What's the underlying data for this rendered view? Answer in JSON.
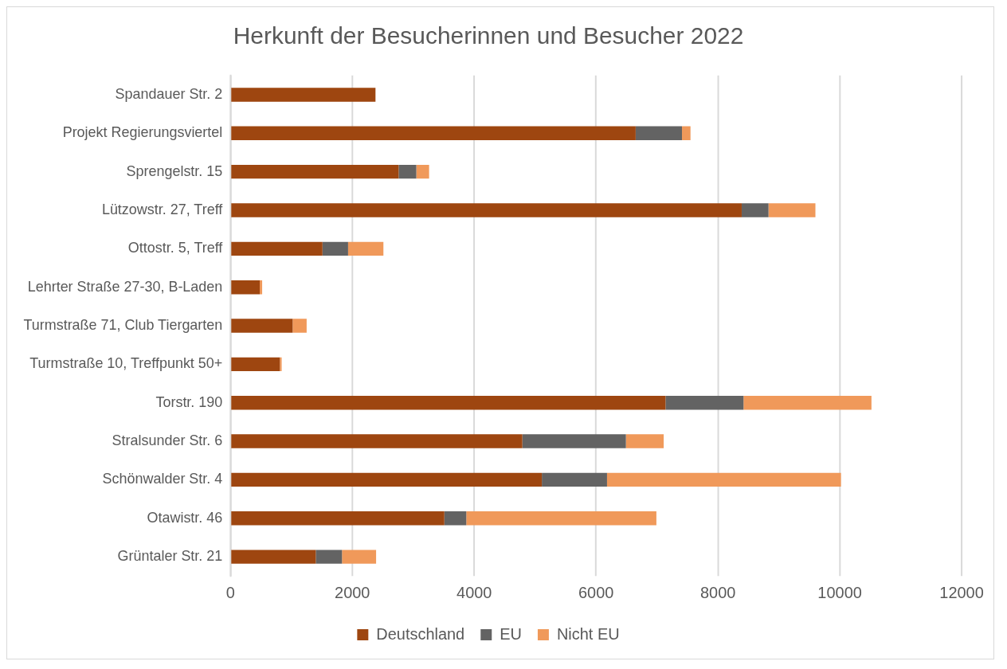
{
  "chart_data": {
    "type": "bar",
    "orientation": "horizontal",
    "stacked": true,
    "title": "Herkunft der Besucherinnen und Besucher 2022",
    "categories": [
      "Spandauer Str. 2",
      "Projekt Regierungsviertel",
      "Sprengelstr. 15",
      "Lützowstr. 27, Treff",
      "Ottostr. 5, Treff",
      "Lehrter Straße 27-30, B-Laden",
      "Turmstraße 71, Club Tiergarten",
      "Turmstraße 10, Treffpunkt 50+",
      "Torstr. 190",
      "Stralsunder Str. 6",
      "Schönwalder Str. 4",
      "Otawistr. 46",
      "Grüntaler Str. 21"
    ],
    "series": [
      {
        "name": "Deutschland",
        "color": "#9e4610",
        "values": [
          2380,
          6650,
          2760,
          8390,
          1510,
          480,
          1020,
          810,
          7140,
          4790,
          5110,
          3510,
          1400
        ]
      },
      {
        "name": "EU",
        "color": "#636363",
        "values": [
          0,
          760,
          290,
          440,
          420,
          0,
          0,
          0,
          1280,
          1700,
          1070,
          360,
          430
        ]
      },
      {
        "name": "Nicht EU",
        "color": "#f0995a",
        "values": [
          0,
          140,
          210,
          770,
          580,
          40,
          230,
          30,
          2100,
          620,
          3840,
          3120,
          560
        ]
      }
    ],
    "xlim": [
      0,
      12000
    ],
    "xticks": [
      0,
      2000,
      4000,
      6000,
      8000,
      10000,
      12000
    ],
    "grid": "x",
    "legend": "bottom"
  }
}
